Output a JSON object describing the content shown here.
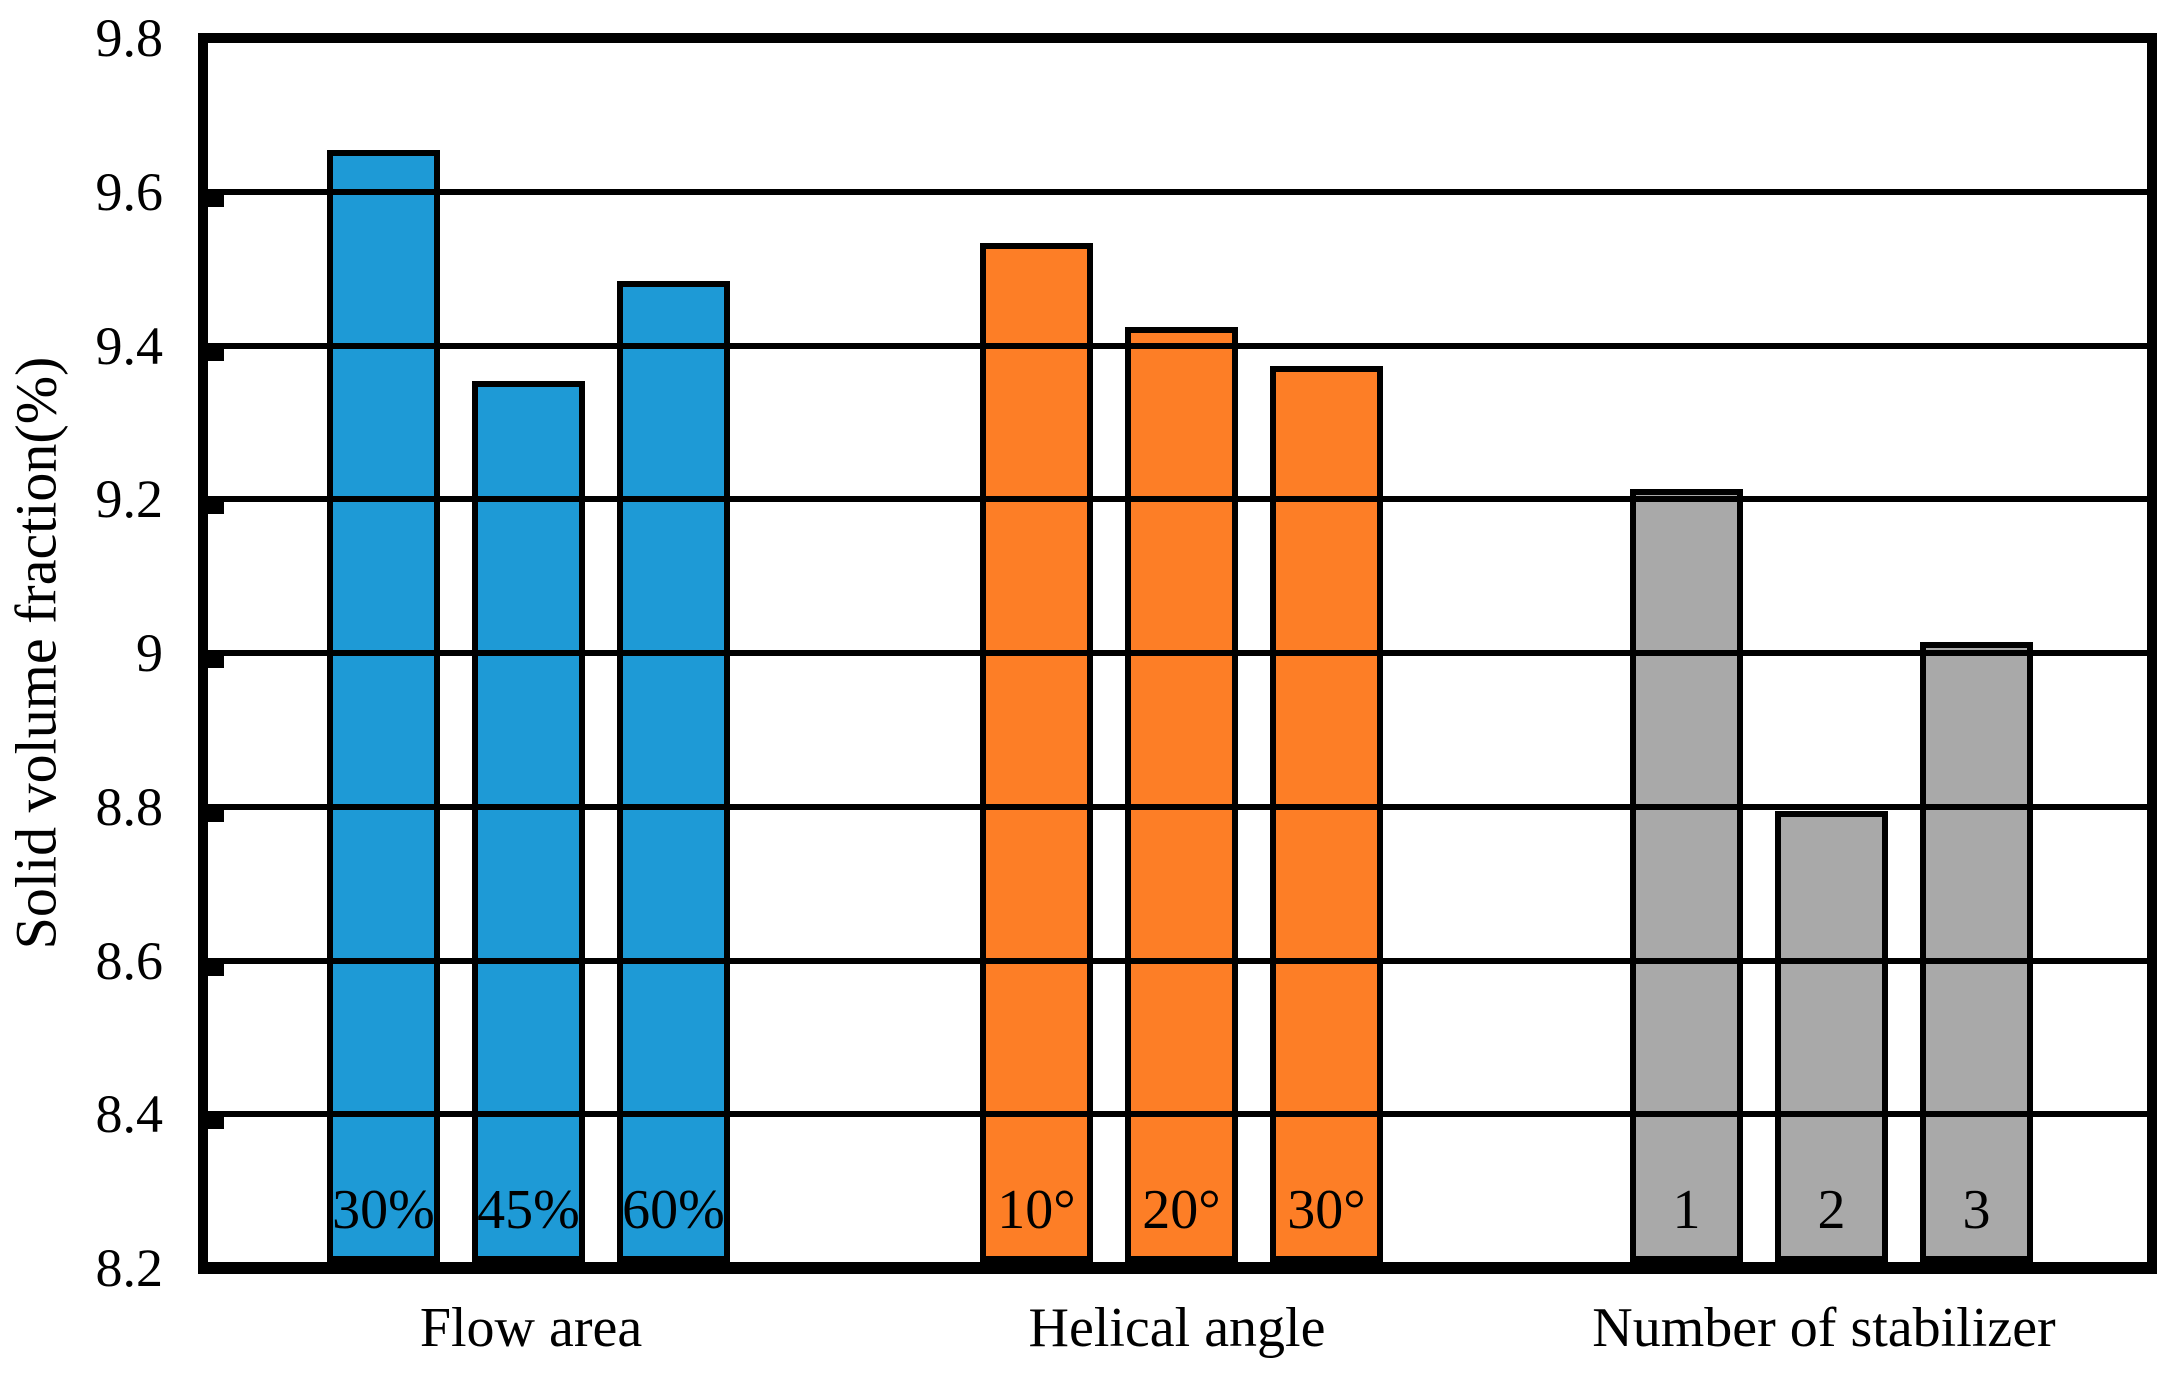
{
  "chart_data": {
    "type": "bar",
    "title": "",
    "ylabel": "Solid volume fraction(%)",
    "xlabel": "",
    "ylim": [
      8.2,
      9.8
    ],
    "ytick_step": 0.2,
    "ytick_labels": [
      "9.8",
      "9.6",
      "9.4",
      "9.2",
      "9",
      "8.8",
      "8.6",
      "8.4",
      "8.2"
    ],
    "grid": "horizontal",
    "legend": "none",
    "bar_outline_color": "#000000",
    "groups": [
      {
        "label": "Flow area",
        "color": "#1E9AD6",
        "bars": [
          {
            "label": "30%",
            "value": 9.65
          },
          {
            "label": "45%",
            "value": 9.35
          },
          {
            "label": "60%",
            "value": 9.48
          }
        ]
      },
      {
        "label": "Helical angle",
        "color": "#FD7E26",
        "bars": [
          {
            "label": "10°",
            "value": 9.53
          },
          {
            "label": "20°",
            "value": 9.42
          },
          {
            "label": "30°",
            "value": 9.37
          }
        ]
      },
      {
        "label": "Number of stabilizer",
        "color": "#A9A9A9",
        "bars": [
          {
            "label": "1",
            "value": 9.21
          },
          {
            "label": "2",
            "value": 8.79
          },
          {
            "label": "3",
            "value": 9.01
          }
        ]
      }
    ]
  }
}
